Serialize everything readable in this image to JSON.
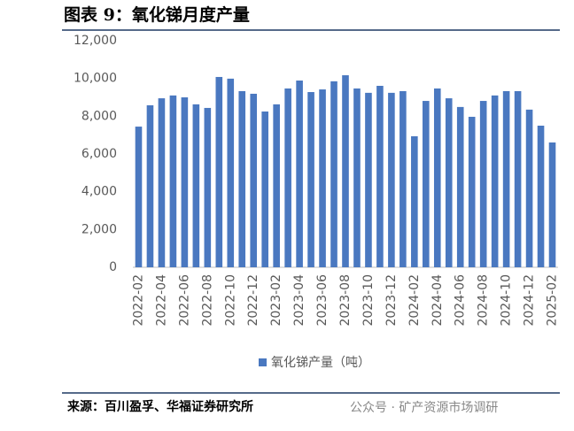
{
  "chart_data": {
    "type": "bar",
    "title": "图表 9：氧化锑月度产量",
    "categories": [
      "2022-02",
      null,
      "2022-04",
      null,
      "2022-06",
      null,
      "2022-08",
      null,
      "2022-10",
      null,
      "2022-12",
      null,
      "2023-02",
      null,
      "2023-04",
      null,
      "2023-06",
      null,
      "2023-08",
      null,
      "2023-10",
      null,
      "2023-12",
      null,
      "2024-02",
      null,
      "2024-04",
      null,
      "2024-06",
      null,
      "2024-08",
      null,
      "2024-10",
      null,
      "2024-12",
      null,
      "2025-02"
    ],
    "series": [
      {
        "name": "氧化锑产量（吨）",
        "color": "#4a78c0",
        "values": [
          7450,
          8580,
          8950,
          9100,
          9000,
          8630,
          8440,
          10080,
          9990,
          9330,
          9190,
          8250,
          8630,
          9470,
          9890,
          9280,
          9420,
          9850,
          10170,
          9470,
          9240,
          9610,
          9240,
          9330,
          6940,
          8810,
          9470,
          8950,
          8490,
          7970,
          8810,
          9100,
          9330,
          9330,
          8350,
          7500,
          6610
        ]
      }
    ],
    "ylim": [
      0,
      12000
    ],
    "yticks": [
      0,
      {
        "value": 2000,
        "label": "2,000"
      },
      {
        "value": 4000,
        "label": "4,000"
      },
      {
        "value": 6000,
        "label": "6,000"
      },
      {
        "value": 8000,
        "label": "8,000"
      },
      {
        "value": 10000,
        "label": "10,000"
      },
      {
        "value": 12000,
        "label": "12,000"
      }
    ],
    "grid": false,
    "legend": "bottom",
    "source": "来源：百川盈孚、华福证券研究所",
    "watermark": "公众号 · 矿产资源市场调研"
  }
}
